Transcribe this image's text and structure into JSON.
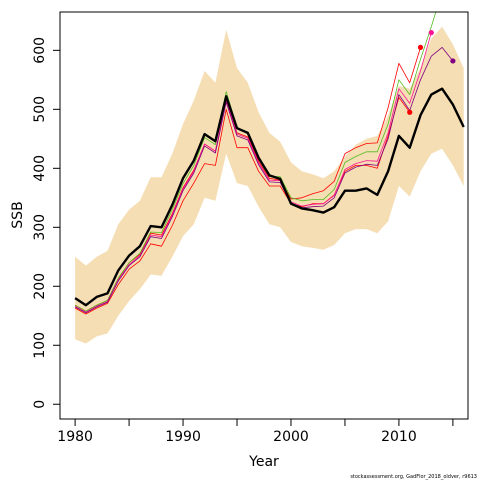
{
  "chart_data": {
    "type": "line",
    "xlabel": "Year",
    "ylabel": "SSB",
    "xlim": [
      1978.6,
      2016.4
    ],
    "ylim": [
      -25,
      665
    ],
    "x_ticks": [
      1980,
      1990,
      2000,
      2010
    ],
    "y_ticks": [
      0,
      100,
      200,
      300,
      400,
      500,
      600
    ],
    "credit": "stockassessment.org, GadFlor_2018_oldver, r9613",
    "band": {
      "x": [
        1980,
        1981,
        1982,
        1983,
        1984,
        1985,
        1986,
        1987,
        1988,
        1989,
        1990,
        1991,
        1992,
        1993,
        1994,
        1995,
        1996,
        1997,
        1998,
        1999,
        2000,
        2001,
        2002,
        2003,
        2004,
        2005,
        2006,
        2007,
        2008,
        2009,
        2010,
        2011,
        2012,
        2013,
        2014,
        2015,
        2016
      ],
      "upper": [
        250,
        235,
        250,
        260,
        305,
        330,
        345,
        385,
        385,
        425,
        475,
        515,
        565,
        545,
        635,
        570,
        545,
        495,
        460,
        445,
        410,
        395,
        390,
        383,
        395,
        420,
        440,
        450,
        455,
        490,
        540,
        535,
        570,
        620,
        640,
        610,
        570
      ],
      "lower": [
        110,
        103,
        115,
        120,
        150,
        175,
        195,
        220,
        218,
        250,
        285,
        305,
        350,
        345,
        425,
        375,
        370,
        335,
        305,
        300,
        275,
        268,
        265,
        262,
        270,
        290,
        297,
        297,
        290,
        310,
        370,
        352,
        395,
        425,
        433,
        405,
        370
      ],
      "color": "#f5deb3"
    },
    "series": [
      {
        "color": "#000000",
        "x": [
          1980,
          1981,
          1982,
          1983,
          1984,
          1985,
          1986,
          1987,
          1988,
          1989,
          1990,
          1991,
          1992,
          1993,
          1994,
          1995,
          1996,
          1997,
          1998,
          1999,
          2000,
          2001,
          2002,
          2003,
          2004,
          2005,
          2006,
          2007,
          2008,
          2009,
          2010,
          2011,
          2012,
          2013,
          2014,
          2015,
          2016
        ],
        "values": [
          180,
          168,
          182,
          188,
          227,
          252,
          268,
          302,
          300,
          338,
          383,
          413,
          458,
          446,
          522,
          468,
          460,
          418,
          388,
          382,
          340,
          332,
          329,
          325,
          334,
          362,
          362,
          366,
          355,
          395,
          455,
          435,
          490,
          525,
          535,
          508,
          470
        ]
      },
      {
        "color": "#ff0000",
        "x": [
          1980,
          1981,
          1982,
          1983,
          1984,
          1985,
          1986,
          1987,
          1988,
          1989,
          1990,
          1991,
          1992,
          1993,
          1994,
          1995,
          1996,
          1997,
          1998,
          1999,
          2000,
          2001,
          2002,
          2003,
          2004,
          2005,
          2006,
          2007,
          2008,
          2009,
          2010,
          2011,
          2012
        ],
        "values": [
          168,
          158,
          168,
          176,
          213,
          240,
          254,
          290,
          287,
          323,
          367,
          397,
          441,
          429,
          514,
          460,
          453,
          412,
          383,
          380,
          348,
          350,
          357,
          362,
          378,
          425,
          435,
          442,
          443,
          503,
          578,
          545,
          605
        ],
        "endpoint": true
      },
      {
        "color": "#ff0000",
        "x": [
          1980,
          1981,
          1982,
          1983,
          1984,
          1985,
          1986,
          1987,
          1988,
          1989,
          1990,
          1991,
          1992,
          1993,
          1994,
          1995,
          1996,
          1997,
          1998,
          1999,
          2000,
          2001,
          2002,
          2003,
          2004,
          2005,
          2006,
          2007,
          2008,
          2009,
          2010,
          2011
        ],
        "values": [
          163,
          153,
          163,
          171,
          203,
          229,
          243,
          272,
          268,
          303,
          345,
          375,
          408,
          405,
          500,
          435,
          435,
          395,
          370,
          370,
          340,
          335,
          340,
          340,
          355,
          395,
          405,
          405,
          400,
          455,
          520,
          495
        ],
        "endpoint": true
      },
      {
        "color": "#55bb22",
        "x": [
          1980,
          1981,
          1982,
          1983,
          1984,
          1985,
          1986,
          1987,
          1988,
          1989,
          1990,
          1991,
          1992,
          1993,
          1994,
          1995,
          1996,
          1997,
          1998,
          1999,
          2000,
          2001,
          2002,
          2003,
          2004,
          2005,
          2006,
          2007,
          2008,
          2009,
          2010,
          2011,
          2012,
          2013,
          2014
        ],
        "values": [
          168,
          158,
          168,
          176,
          214,
          240,
          256,
          292,
          291,
          330,
          374,
          405,
          452,
          440,
          530,
          470,
          458,
          416,
          386,
          386,
          350,
          345,
          347,
          347,
          364,
          410,
          420,
          428,
          428,
          475,
          550,
          525,
          585,
          640,
          700
        ],
        "endpoint": false
      },
      {
        "color": "#ff1493",
        "x": [
          1980,
          1981,
          1982,
          1983,
          1984,
          1985,
          1986,
          1987,
          1988,
          1989,
          1990,
          1991,
          1992,
          1993,
          1994,
          1995,
          1996,
          1997,
          1998,
          1999,
          2000,
          2001,
          2002,
          2003,
          2004,
          2005,
          2006,
          2007,
          2008,
          2009,
          2010,
          2011,
          2012,
          2013
        ],
        "values": [
          166,
          156,
          166,
          174,
          211,
          237,
          252,
          287,
          284,
          321,
          365,
          395,
          441,
          429,
          516,
          458,
          451,
          409,
          380,
          379,
          343,
          336,
          339,
          340,
          354,
          398,
          408,
          413,
          412,
          460,
          535,
          510,
          565,
          630
        ],
        "endpoint": true
      },
      {
        "color": "#800080",
        "x": [
          1980,
          1981,
          1982,
          1983,
          1984,
          1985,
          1986,
          1987,
          1988,
          1989,
          1990,
          1991,
          1992,
          1993,
          1994,
          1995,
          1996,
          1997,
          1998,
          1999,
          2000,
          2001,
          2002,
          2003,
          2004,
          2005,
          2006,
          2007,
          2008,
          2009,
          2010,
          2011,
          2012,
          2013,
          2014,
          2015
        ],
        "values": [
          165,
          155,
          165,
          173,
          209,
          235,
          250,
          284,
          281,
          318,
          362,
          392,
          438,
          426,
          512,
          455,
          448,
          406,
          377,
          376,
          340,
          333,
          335,
          336,
          350,
          392,
          402,
          407,
          405,
          450,
          525,
          498,
          550,
          590,
          605,
          582
        ],
        "endpoint": true
      }
    ]
  }
}
